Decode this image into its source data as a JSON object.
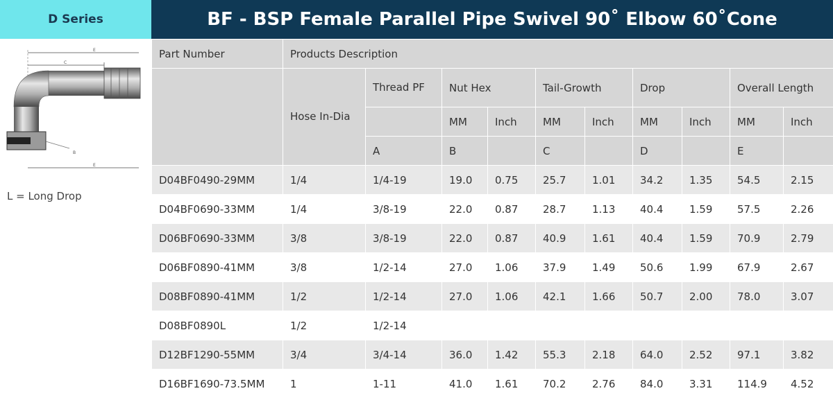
{
  "series_label": "D Series",
  "title": "BF - BSP Female Parallel Pipe Swivel 90˚ Elbow 60˚Cone",
  "diagram": {
    "icon": "swivel-elbow-diagram-icon",
    "dimension_labels": {
      "e_top": "E",
      "c": "C",
      "b": "B",
      "e_bottom": "E"
    }
  },
  "legend_note": "L = Long Drop",
  "header": {
    "part_number": "Part Number",
    "products_description": "Products Description",
    "hose_in_dia": "Hose In-Dia",
    "thread_pf": "Thread PF",
    "nut_hex": "Nut Hex",
    "tail_growth": "Tail-Growth",
    "drop": "Drop",
    "overall_length": "Overall Length",
    "mm": "MM",
    "inch": "Inch",
    "letters": {
      "a": "A",
      "b": "B",
      "c": "C",
      "d": "D",
      "e": "E"
    }
  },
  "rows": [
    {
      "part": "D04BF0490-29MM",
      "hose": "1/4",
      "thread": "1/4-19",
      "nut_mm": "19.0",
      "nut_in": "0.75",
      "tail_mm": "25.7",
      "tail_in": "1.01",
      "drop_mm": "34.2",
      "drop_in": "1.35",
      "len_mm": "54.5",
      "len_in": "2.15"
    },
    {
      "part": "D04BF0690-33MM",
      "hose": "1/4",
      "thread": "3/8-19",
      "nut_mm": "22.0",
      "nut_in": "0.87",
      "tail_mm": "28.7",
      "tail_in": "1.13",
      "drop_mm": "40.4",
      "drop_in": "1.59",
      "len_mm": "57.5",
      "len_in": "2.26"
    },
    {
      "part": "D06BF0690-33MM",
      "hose": "3/8",
      "thread": "3/8-19",
      "nut_mm": "22.0",
      "nut_in": "0.87",
      "tail_mm": "40.9",
      "tail_in": "1.61",
      "drop_mm": "40.4",
      "drop_in": "1.59",
      "len_mm": "70.9",
      "len_in": "2.79"
    },
    {
      "part": "D06BF0890-41MM",
      "hose": "3/8",
      "thread": "1/2-14",
      "nut_mm": "27.0",
      "nut_in": "1.06",
      "tail_mm": "37.9",
      "tail_in": "1.49",
      "drop_mm": "50.6",
      "drop_in": "1.99",
      "len_mm": "67.9",
      "len_in": "2.67"
    },
    {
      "part": "D08BF0890-41MM",
      "hose": "1/2",
      "thread": "1/2-14",
      "nut_mm": "27.0",
      "nut_in": "1.06",
      "tail_mm": "42.1",
      "tail_in": "1.66",
      "drop_mm": "50.7",
      "drop_in": "2.00",
      "len_mm": "78.0",
      "len_in": "3.07"
    },
    {
      "part": "D08BF0890L",
      "hose": "1/2",
      "thread": "1/2-14",
      "nut_mm": "",
      "nut_in": "",
      "tail_mm": "",
      "tail_in": "",
      "drop_mm": "",
      "drop_in": "",
      "len_mm": "",
      "len_in": ""
    },
    {
      "part": "D12BF1290-55MM",
      "hose": "3/4",
      "thread": "3/4-14",
      "nut_mm": "36.0",
      "nut_in": "1.42",
      "tail_mm": "55.3",
      "tail_in": "2.18",
      "drop_mm": "64.0",
      "drop_in": "2.52",
      "len_mm": "97.1",
      "len_in": "3.82"
    },
    {
      "part": "D16BF1690-73.5MM",
      "hose": "1",
      "thread": "1-11",
      "nut_mm": "41.0",
      "nut_in": "1.61",
      "tail_mm": "70.2",
      "tail_in": "2.76",
      "drop_mm": "84.0",
      "drop_in": "3.31",
      "len_mm": "114.9",
      "len_in": "4.52"
    }
  ]
}
